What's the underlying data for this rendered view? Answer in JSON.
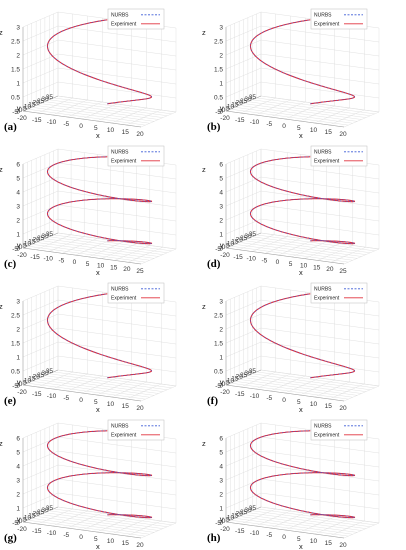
{
  "figure": {
    "panel_labels": [
      "(a)",
      "(b)",
      "(c)",
      "(d)",
      "(e)",
      "(f)",
      "(g)",
      "(h)"
    ],
    "legend": [
      "NURBS",
      "Experiment"
    ],
    "axis_labels": {
      "x": "x",
      "y": "y",
      "z": "z"
    },
    "colors": {
      "nurbs": "#3b5bd6",
      "experiment": "#e0303c",
      "grid": "#d9d9d9"
    }
  },
  "chart_data": [
    {
      "panel": "(a)",
      "type": "line",
      "turns": 1,
      "xticks": [
        -20,
        -15,
        -10,
        -5,
        0,
        5,
        10,
        15,
        20
      ],
      "yticks": [
        -5,
        0,
        5,
        10,
        15,
        20,
        25,
        30,
        35
      ],
      "zticks": [
        0,
        0.5,
        1,
        1.5,
        2,
        2.5,
        3
      ],
      "xlim": [
        -20,
        20
      ],
      "ylim": [
        -5,
        35
      ],
      "zlim": [
        0,
        3
      ],
      "series": [
        {
          "name": "NURBS"
        },
        {
          "name": "Experiment"
        }
      ]
    },
    {
      "panel": "(b)",
      "type": "line",
      "turns": 1,
      "xticks": [
        -20,
        -15,
        -10,
        -5,
        0,
        5,
        10,
        15,
        20
      ],
      "yticks": [
        -5,
        0,
        5,
        10,
        15,
        20,
        25,
        30,
        35
      ],
      "zticks": [
        0,
        0.5,
        1,
        1.5,
        2,
        2.5,
        3
      ],
      "xlim": [
        -20,
        20
      ],
      "ylim": [
        -5,
        35
      ],
      "zlim": [
        0,
        3
      ],
      "series": [
        {
          "name": "NURBS"
        },
        {
          "name": "Experiment"
        }
      ]
    },
    {
      "panel": "(c)",
      "type": "line",
      "turns": 2,
      "xticks": [
        -20,
        -15,
        -10,
        -5,
        0,
        5,
        10,
        15,
        20,
        25
      ],
      "yticks": [
        -5,
        0,
        5,
        10,
        15,
        20,
        25,
        30,
        35
      ],
      "zticks": [
        0,
        1,
        2,
        3,
        4,
        5,
        6
      ],
      "xlim": [
        -20,
        25
      ],
      "ylim": [
        -5,
        35
      ],
      "zlim": [
        0,
        6
      ],
      "series": [
        {
          "name": "NURBS"
        },
        {
          "name": "Experiment"
        }
      ]
    },
    {
      "panel": "(d)",
      "type": "line",
      "turns": 2,
      "xticks": [
        -20,
        -15,
        -10,
        -5,
        0,
        5,
        10,
        15,
        20,
        25
      ],
      "yticks": [
        -5,
        0,
        5,
        10,
        15,
        20,
        25,
        30,
        35
      ],
      "zticks": [
        0,
        1,
        2,
        3,
        4,
        5,
        6
      ],
      "xlim": [
        -20,
        25
      ],
      "ylim": [
        -5,
        35
      ],
      "zlim": [
        0,
        6
      ],
      "series": [
        {
          "name": "NURBS"
        },
        {
          "name": "Experiment"
        }
      ]
    },
    {
      "panel": "(e)",
      "type": "line",
      "turns": 1,
      "xticks": [
        -20,
        -15,
        -10,
        -5,
        0,
        5,
        10,
        15,
        20
      ],
      "yticks": [
        -5,
        0,
        5,
        10,
        15,
        20,
        25,
        30,
        35
      ],
      "zticks": [
        0,
        0.5,
        1,
        1.5,
        2,
        2.5,
        3
      ],
      "xlim": [
        -20,
        20
      ],
      "ylim": [
        -5,
        35
      ],
      "zlim": [
        0,
        3
      ],
      "series": [
        {
          "name": "NURBS"
        },
        {
          "name": "Experiment"
        }
      ]
    },
    {
      "panel": "(f)",
      "type": "line",
      "turns": 1,
      "xticks": [
        -20,
        -15,
        -10,
        -5,
        0,
        5,
        10,
        15,
        20
      ],
      "yticks": [
        -5,
        0,
        5,
        10,
        15,
        20,
        25,
        30,
        35
      ],
      "zticks": [
        0,
        0.5,
        1,
        1.5,
        2,
        2.5,
        3
      ],
      "xlim": [
        -20,
        20
      ],
      "ylim": [
        -5,
        35
      ],
      "zlim": [
        0,
        3
      ],
      "series": [
        {
          "name": "NURBS"
        },
        {
          "name": "Experiment"
        }
      ]
    },
    {
      "panel": "(g)",
      "type": "line",
      "turns": 2,
      "xticks": [
        -20,
        -15,
        -10,
        -5,
        0,
        5,
        10,
        15,
        20
      ],
      "yticks": [
        -5,
        0,
        5,
        10,
        15,
        20,
        25,
        30,
        35
      ],
      "zticks": [
        0,
        1,
        2,
        3,
        4,
        5,
        6
      ],
      "xlim": [
        -20,
        20
      ],
      "ylim": [
        -5,
        35
      ],
      "zlim": [
        0,
        6
      ],
      "series": [
        {
          "name": "NURBS"
        },
        {
          "name": "Experiment"
        }
      ]
    },
    {
      "panel": "(h)",
      "type": "line",
      "turns": 2,
      "xticks": [
        -20,
        -15,
        -10,
        -5,
        0,
        5,
        10,
        15,
        20
      ],
      "yticks": [
        -5,
        0,
        5,
        10,
        15,
        20,
        25,
        30,
        35
      ],
      "zticks": [
        0,
        1,
        2,
        3,
        4,
        5,
        6
      ],
      "xlim": [
        -20,
        20
      ],
      "ylim": [
        -5,
        35
      ],
      "zlim": [
        0,
        6
      ],
      "series": [
        {
          "name": "NURBS"
        },
        {
          "name": "Experiment"
        }
      ]
    }
  ]
}
